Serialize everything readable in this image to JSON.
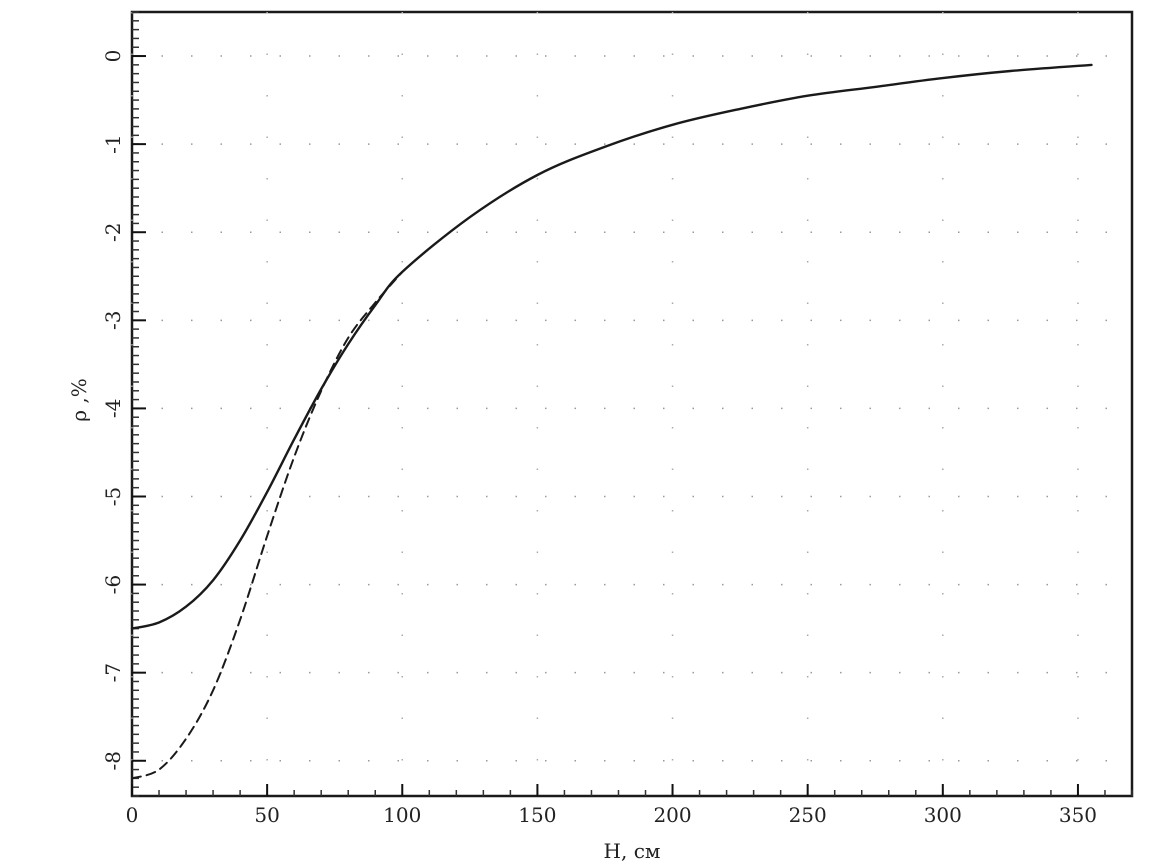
{
  "chart_data": {
    "type": "line",
    "title": "",
    "xlabel": "H, см",
    "ylabel": "ρ ,%",
    "xlim": [
      0,
      370
    ],
    "ylim": [
      -8.4,
      0.5
    ],
    "xticks": [
      0,
      50,
      100,
      150,
      200,
      250,
      300,
      350
    ],
    "xtick_labels": [
      "0",
      "50",
      "100",
      "150",
      "200",
      "250",
      "300",
      "350"
    ],
    "yticks": [
      0,
      -1,
      -2,
      -3,
      -4,
      -5,
      -6,
      -7,
      -8
    ],
    "ytick_labels": [
      "0",
      "-1",
      "-2",
      "-3",
      "-4",
      "-5",
      "-6",
      "-7",
      "-8"
    ],
    "grid": "dotted",
    "series": [
      {
        "style": "solid",
        "x": [
          0,
          10,
          20,
          30,
          40,
          50,
          60,
          70,
          80,
          90,
          100,
          125,
          150,
          175,
          200,
          225,
          250,
          275,
          300,
          325,
          355
        ],
        "y": [
          -6.5,
          -6.43,
          -6.25,
          -5.95,
          -5.5,
          -4.95,
          -4.35,
          -3.78,
          -3.27,
          -2.83,
          -2.45,
          -1.83,
          -1.35,
          -1.03,
          -0.78,
          -0.6,
          -0.45,
          -0.35,
          -0.25,
          -0.17,
          -0.1
        ]
      },
      {
        "style": "dashed",
        "x": [
          0,
          10,
          20,
          30,
          40,
          50,
          60,
          70,
          80,
          90,
          100
        ],
        "y": [
          -8.2,
          -8.1,
          -7.75,
          -7.2,
          -6.4,
          -5.45,
          -4.55,
          -3.8,
          -3.2,
          -2.8,
          -2.45
        ]
      }
    ]
  }
}
